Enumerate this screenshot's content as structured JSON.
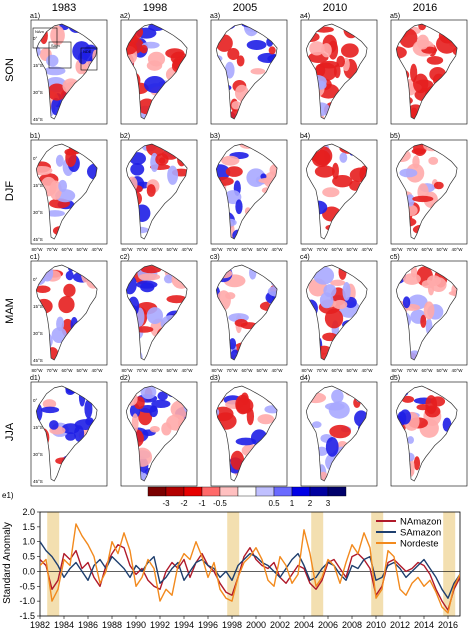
{
  "figure": {
    "years": [
      "1983",
      "1998",
      "2005",
      "2010",
      "2016"
    ],
    "seasons": [
      "SON",
      "DJF",
      "MAM",
      "JJA"
    ],
    "panel_labels": [
      [
        "a1)",
        "a2)",
        "a3)",
        "a4)",
        "a5)"
      ],
      [
        "b1)",
        "b2)",
        "b3)",
        "b4)",
        "b5)"
      ],
      [
        "c1)",
        "c2)",
        "c3)",
        "c4)",
        "c5)"
      ],
      [
        "d1)",
        "d2)",
        "d3)",
        "d4)",
        "d5)"
      ]
    ],
    "map_lat_ticks": [
      "0°",
      "15°S",
      "30°S",
      "45°S"
    ],
    "map_lon_ticks": [
      "80°W",
      "70°W",
      "60°W",
      "50°W",
      "40°W"
    ],
    "region_boxes": [
      "NAm",
      "SAm",
      "NDE"
    ],
    "colorbar": {
      "tick_labels": [
        "-3",
        "-2",
        "-1",
        "-0.5",
        "0.5",
        "1",
        "2",
        "3"
      ],
      "colors": [
        "#7a0000",
        "#b30000",
        "#e60000",
        "#ff6a6a",
        "#ffc0c0",
        "#ffffff",
        "#c0c0ff",
        "#6a6aff",
        "#0000e6",
        "#0000a0",
        "#00006a"
      ]
    },
    "map_colors": {
      "wet": "#1e1ee6",
      "dry": "#e61e1e",
      "light_wet": "#a8a8ff",
      "light_dry": "#ffaaaa",
      "outline": "#333333"
    }
  },
  "chart_data": {
    "type": "line",
    "panel_label": "e1)",
    "ylabel": "Standard Anomaly",
    "xlim": [
      1982,
      2017
    ],
    "ylim": [
      -1.5,
      2.0
    ],
    "xticks": [
      1982,
      1984,
      1986,
      1988,
      1990,
      1992,
      1994,
      1996,
      1998,
      2000,
      2002,
      2004,
      2006,
      2008,
      2010,
      2012,
      2014,
      2016
    ],
    "yticks": [
      -1.5,
      -1.0,
      -0.5,
      0.0,
      0.5,
      1.0,
      1.5,
      2.0
    ],
    "ytick_labels": [
      "-1.5",
      "-1.0",
      "-0.5",
      "0.0",
      "0.5",
      "1.0",
      "1.5",
      "2.0"
    ],
    "highlight_years": [
      1983,
      1998,
      2005,
      2010,
      2016
    ],
    "highlight_color": "#f3dfb0",
    "legend_position": "top-right",
    "series": [
      {
        "name": "NAmazon",
        "color": "#b01a2a",
        "x": [
          1982.0,
          1982.5,
          1983.0,
          1983.5,
          1984.0,
          1984.5,
          1985.0,
          1985.5,
          1986.0,
          1986.5,
          1987.0,
          1987.5,
          1988.0,
          1988.5,
          1989.0,
          1989.5,
          1990.0,
          1990.5,
          1991.0,
          1991.5,
          1992.0,
          1992.5,
          1993.0,
          1993.5,
          1994.0,
          1994.5,
          1995.0,
          1995.5,
          1996.0,
          1996.5,
          1997.0,
          1997.5,
          1998.0,
          1998.5,
          1999.0,
          1999.5,
          2000.0,
          2000.5,
          2001.0,
          2001.5,
          2002.0,
          2002.5,
          2003.0,
          2003.5,
          2004.0,
          2004.5,
          2005.0,
          2005.5,
          2006.0,
          2006.5,
          2007.0,
          2007.5,
          2008.0,
          2008.5,
          2009.0,
          2009.5,
          2010.0,
          2010.5,
          2011.0,
          2011.5,
          2012.0,
          2012.5,
          2013.0,
          2013.5,
          2014.0,
          2014.5,
          2015.0,
          2015.5,
          2016.0,
          2016.5,
          2017.0
        ],
        "y": [
          0.4,
          0.2,
          -0.6,
          -0.3,
          0.6,
          0.4,
          0.7,
          0.1,
          0.3,
          -0.2,
          -0.5,
          0.2,
          0.6,
          0.9,
          0.8,
          0.2,
          -0.1,
          0.1,
          -0.3,
          -0.5,
          -0.6,
          0.0,
          0.3,
          0.1,
          0.4,
          -0.2,
          0.3,
          0.6,
          0.2,
          0.0,
          -0.4,
          -0.7,
          -0.8,
          -0.2,
          0.5,
          0.8,
          0.4,
          0.2,
          0.1,
          0.3,
          -0.2,
          -0.4,
          -0.1,
          0.2,
          0.1,
          -0.4,
          -0.6,
          -0.3,
          0.3,
          0.4,
          0.1,
          -0.2,
          0.5,
          0.6,
          0.4,
          0.1,
          -0.8,
          -0.5,
          0.3,
          0.4,
          0.2,
          0.0,
          0.1,
          0.3,
          0.2,
          -0.1,
          -0.6,
          -1.0,
          -1.3,
          -0.6,
          -0.2
        ]
      },
      {
        "name": "SAmazon",
        "color": "#1f3f6e",
        "x": [
          1982.0,
          1982.5,
          1983.0,
          1983.5,
          1984.0,
          1984.5,
          1985.0,
          1985.5,
          1986.0,
          1986.5,
          1987.0,
          1987.5,
          1988.0,
          1988.5,
          1989.0,
          1989.5,
          1990.0,
          1990.5,
          1991.0,
          1991.5,
          1992.0,
          1992.5,
          1993.0,
          1993.5,
          1994.0,
          1994.5,
          1995.0,
          1995.5,
          1996.0,
          1996.5,
          1997.0,
          1997.5,
          1998.0,
          1998.5,
          1999.0,
          1999.5,
          2000.0,
          2000.5,
          2001.0,
          2001.5,
          2002.0,
          2002.5,
          2003.0,
          2003.5,
          2004.0,
          2004.5,
          2005.0,
          2005.5,
          2006.0,
          2006.5,
          2007.0,
          2007.5,
          2008.0,
          2008.5,
          2009.0,
          2009.5,
          2010.0,
          2010.5,
          2011.0,
          2011.5,
          2012.0,
          2012.5,
          2013.0,
          2013.5,
          2014.0,
          2014.5,
          2015.0,
          2015.5,
          2016.0,
          2016.5,
          2017.0
        ],
        "y": [
          1.0,
          0.7,
          0.5,
          0.2,
          -0.2,
          0.1,
          0.3,
          0.0,
          -0.3,
          0.2,
          0.4,
          0.1,
          0.5,
          0.3,
          0.1,
          -0.2,
          0.2,
          0.0,
          0.3,
          0.5,
          -0.4,
          -0.2,
          0.1,
          0.3,
          -0.3,
          0.0,
          0.3,
          0.4,
          0.2,
          0.1,
          -0.2,
          0.0,
          -0.3,
          0.2,
          0.4,
          0.6,
          0.5,
          0.3,
          0.2,
          0.0,
          -0.2,
          0.1,
          0.4,
          0.6,
          0.2,
          -0.3,
          -0.2,
          0.1,
          0.3,
          0.2,
          -0.1,
          -0.3,
          0.2,
          0.1,
          0.4,
          0.5,
          -0.3,
          -0.2,
          0.2,
          0.3,
          0.1,
          -0.2,
          0.0,
          0.2,
          0.4,
          0.1,
          -0.2,
          -0.6,
          -0.9,
          -0.4,
          -0.1
        ]
      },
      {
        "name": "Nordeste",
        "color": "#f28a1e",
        "x": [
          1982.0,
          1982.5,
          1983.0,
          1983.5,
          1984.0,
          1984.5,
          1985.0,
          1985.5,
          1986.0,
          1986.5,
          1987.0,
          1987.5,
          1988.0,
          1988.5,
          1989.0,
          1989.5,
          1990.0,
          1990.5,
          1991.0,
          1991.5,
          1992.0,
          1992.5,
          1993.0,
          1993.5,
          1994.0,
          1994.5,
          1995.0,
          1995.5,
          1996.0,
          1996.5,
          1997.0,
          1997.5,
          1998.0,
          1998.5,
          1999.0,
          1999.5,
          2000.0,
          2000.5,
          2001.0,
          2001.5,
          2002.0,
          2002.5,
          2003.0,
          2003.5,
          2004.0,
          2004.5,
          2005.0,
          2005.5,
          2006.0,
          2006.5,
          2007.0,
          2007.5,
          2008.0,
          2008.5,
          2009.0,
          2009.5,
          2010.0,
          2010.5,
          2011.0,
          2011.5,
          2012.0,
          2012.5,
          2013.0,
          2013.5,
          2014.0,
          2014.5,
          2015.0,
          2015.5,
          2016.0,
          2016.5,
          2017.0
        ],
        "y": [
          0.2,
          0.4,
          -1.0,
          -0.6,
          0.4,
          0.2,
          1.6,
          1.2,
          0.9,
          0.5,
          -0.4,
          0.0,
          1.0,
          0.6,
          1.3,
          0.7,
          -0.5,
          -0.2,
          0.4,
          0.1,
          -1.0,
          -0.6,
          -0.8,
          0.2,
          0.6,
          0.4,
          1.0,
          0.5,
          -0.2,
          0.3,
          -0.6,
          -0.9,
          -1.0,
          -0.2,
          0.3,
          0.5,
          0.8,
          0.4,
          -0.3,
          -0.5,
          0.5,
          0.2,
          -0.4,
          -0.1,
          1.4,
          0.6,
          -0.5,
          -0.2,
          0.4,
          0.2,
          -0.4,
          0.3,
          0.9,
          0.6,
          1.3,
          0.8,
          -0.9,
          -0.6,
          0.7,
          0.5,
          -0.6,
          -0.8,
          -0.4,
          -0.2,
          -0.5,
          -0.3,
          -0.7,
          -1.2,
          -1.4,
          -0.5,
          -0.1
        ]
      }
    ]
  }
}
